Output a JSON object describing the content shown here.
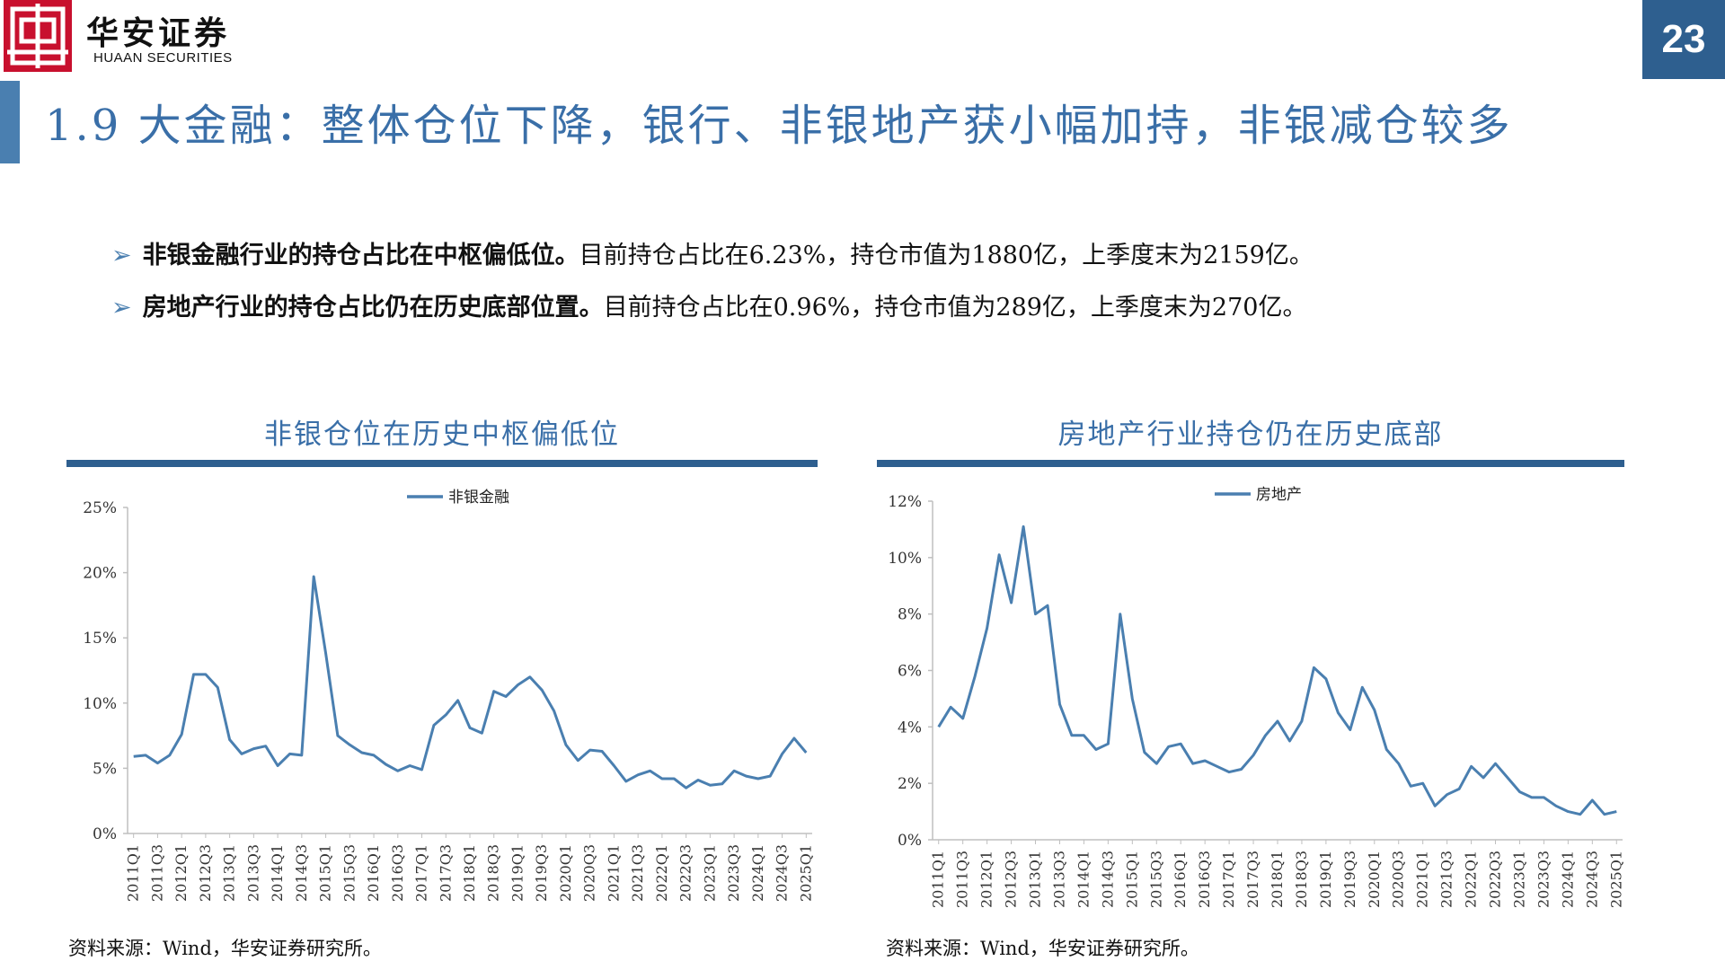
{
  "header": {
    "logo_cn": "华安证券",
    "logo_en": "HUAAN SECURITIES",
    "logo_mark": "中",
    "page_number": "23",
    "title": "1.9 大金融：整体仓位下降，银行、非银地产获小幅加持，非银减仓较多"
  },
  "bullets": [
    {
      "bold": "非银金融行业的持仓占比在中枢偏低位。",
      "text": "目前持仓占比在6.23%，持仓市值为1880亿，上季度末为2159亿。"
    },
    {
      "bold": "房地产行业的持仓占比仍在历史底部位置。",
      "text": "目前持仓占比在0.96%，持仓市值为289亿，上季度末为270亿。"
    }
  ],
  "colors": {
    "accent": "#3a6fa8",
    "line": "#4a7fb0",
    "rule": "#2e5f8f",
    "logo": "#c8102e"
  },
  "chart_data": [
    {
      "type": "line",
      "title": "非银仓位在历史中枢偏低位",
      "source": "资料来源：Wind，华安证券研究所。",
      "legend": "top-center",
      "ylim": [
        0,
        25
      ],
      "yticks": [
        0,
        5,
        10,
        15,
        20,
        25
      ],
      "ytick_labels": [
        "0%",
        "5%",
        "10%",
        "15%",
        "20%",
        "25%"
      ],
      "xtick_labels": [
        "2011Q1",
        "2011Q3",
        "2012Q1",
        "2012Q3",
        "2013Q1",
        "2013Q3",
        "2014Q1",
        "2014Q3",
        "2015Q1",
        "2015Q3",
        "2016Q1",
        "2016Q3",
        "2017Q1",
        "2017Q3",
        "2018Q1",
        "2018Q3",
        "2019Q1",
        "2019Q3",
        "2020Q1",
        "2020Q3",
        "2021Q1",
        "2021Q3",
        "2022Q1",
        "2022Q3",
        "2023Q1",
        "2023Q3",
        "2024Q1",
        "2024Q3",
        "2025Q1"
      ],
      "series": [
        {
          "name": "非银金融",
          "values": [
            5.9,
            6.0,
            5.4,
            6.0,
            7.6,
            12.2,
            12.2,
            11.2,
            7.2,
            6.1,
            6.5,
            6.7,
            5.2,
            6.1,
            6.0,
            19.7,
            13.8,
            7.5,
            6.8,
            6.2,
            6.0,
            5.3,
            4.8,
            5.2,
            4.9,
            8.3,
            9.1,
            10.2,
            8.1,
            7.7,
            10.9,
            10.5,
            11.4,
            12.0,
            11.0,
            9.4,
            6.8,
            5.6,
            6.4,
            6.3,
            5.2,
            4.0,
            4.5,
            4.8,
            4.2,
            4.2,
            3.5,
            4.1,
            3.7,
            3.8,
            4.8,
            4.4,
            4.2,
            4.4,
            6.1,
            7.3,
            6.2
          ]
        }
      ]
    },
    {
      "type": "line",
      "title": "房地产行业持仓仍在历史底部",
      "source": "资料来源：Wind，华安证券研究所。",
      "legend": "top-center",
      "ylim": [
        0,
        12
      ],
      "yticks": [
        0,
        2,
        4,
        6,
        8,
        10,
        12
      ],
      "ytick_labels": [
        "0%",
        "2%",
        "4%",
        "6%",
        "8%",
        "10%",
        "12%"
      ],
      "xtick_labels": [
        "2011Q1",
        "2011Q3",
        "2012Q1",
        "2012Q3",
        "2013Q1",
        "2013Q3",
        "2014Q1",
        "2014Q3",
        "2015Q1",
        "2015Q3",
        "2016Q1",
        "2016Q3",
        "2017Q1",
        "2017Q3",
        "2018Q1",
        "2018Q3",
        "2019Q1",
        "2019Q3",
        "2020Q1",
        "2020Q3",
        "2021Q1",
        "2021Q3",
        "2022Q1",
        "2022Q3",
        "2023Q1",
        "2023Q3",
        "2024Q1",
        "2024Q3",
        "2025Q1"
      ],
      "series": [
        {
          "name": "房地产",
          "values": [
            4.0,
            4.7,
            4.3,
            5.8,
            7.5,
            10.1,
            8.4,
            11.1,
            8.0,
            8.3,
            4.8,
            3.7,
            3.7,
            3.2,
            3.4,
            8.0,
            5.0,
            3.1,
            2.7,
            3.3,
            3.4,
            2.7,
            2.8,
            2.6,
            2.4,
            2.5,
            3.0,
            3.7,
            4.2,
            3.5,
            4.2,
            6.1,
            5.7,
            4.5,
            3.9,
            5.4,
            4.6,
            3.2,
            2.7,
            1.9,
            2.0,
            1.2,
            1.6,
            1.8,
            2.6,
            2.2,
            2.7,
            2.2,
            1.7,
            1.5,
            1.5,
            1.2,
            1.0,
            0.9,
            1.4,
            0.9,
            1.0
          ]
        }
      ]
    }
  ]
}
